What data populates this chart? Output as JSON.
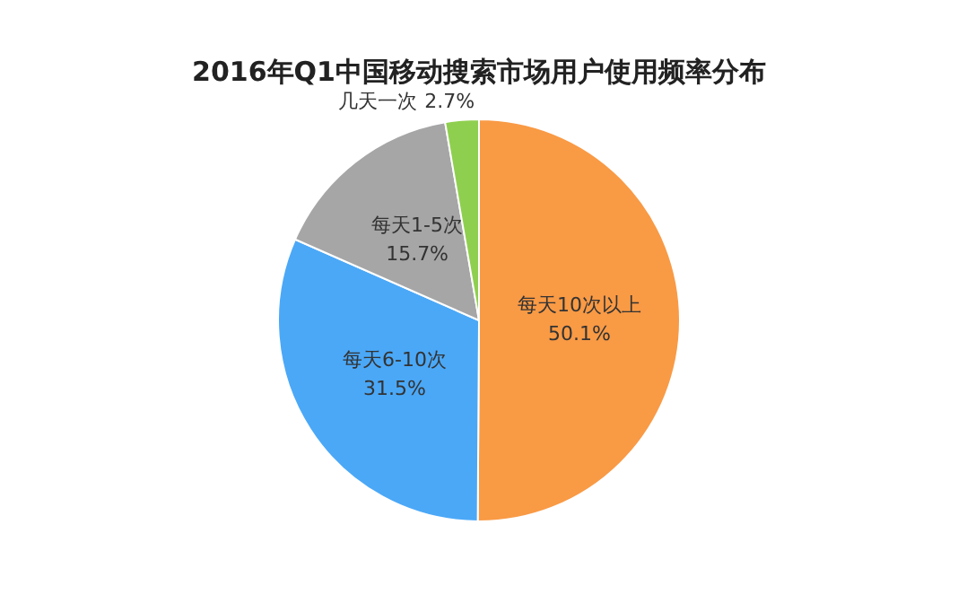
{
  "chart_data": {
    "type": "pie",
    "title": "2016年Q1中国移动搜索市场用户使用频率分布",
    "categories": [
      "每天10次以上",
      "每天6-10次",
      "每天1-5次",
      "几天一次"
    ],
    "values": [
      50.1,
      31.5,
      15.7,
      2.7
    ],
    "colors": [
      "#f99a45",
      "#4ba8f7",
      "#a6a6a6",
      "#8fcf4f"
    ],
    "value_labels": [
      "50.1%",
      "31.5%",
      "15.7%",
      "2.7%"
    ],
    "legend": false
  }
}
